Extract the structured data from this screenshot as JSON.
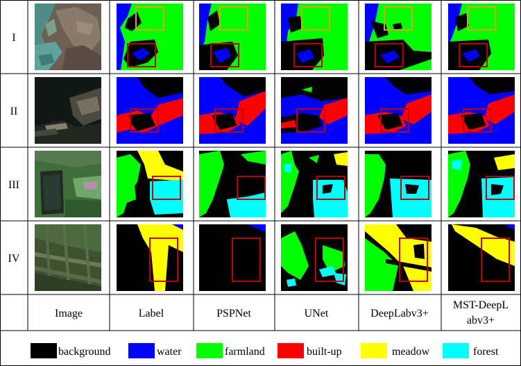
{
  "rows": [
    "I",
    "II",
    "III",
    "IV"
  ],
  "columns": [
    "Image",
    "Label",
    "PSPNet",
    "UNet",
    "DeepLabv3+",
    "MST-DeepL",
    "abv3+"
  ],
  "legend": [
    {
      "label": "background",
      "color": "#000000"
    },
    {
      "label": "water",
      "color": "#0000ff"
    },
    {
      "label": "farmland",
      "color": "#00ff00"
    },
    {
      "label": "built-up",
      "color": "#ff0000"
    },
    {
      "label": "meadow",
      "color": "#ffff00"
    },
    {
      "label": "forest",
      "color": "#00ffff"
    }
  ],
  "highlight_colors": {
    "red_box": "#c00000",
    "orange_box": "#e0a020"
  }
}
